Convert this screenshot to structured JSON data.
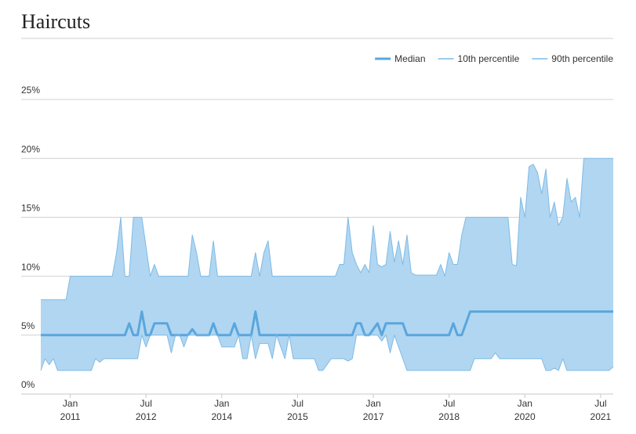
{
  "chart_data": {
    "type": "band-line",
    "title": "Haircuts",
    "legend": "top-right",
    "band_color": "#b1d6f1",
    "x": [
      "2010-06",
      "2010-07",
      "2010-08",
      "2010-09",
      "2010-10",
      "2010-11",
      "2010-12",
      "2011-01",
      "2011-02",
      "2011-03",
      "2011-04",
      "2011-05",
      "2011-06",
      "2011-07",
      "2011-08",
      "2011-09",
      "2011-10",
      "2011-11",
      "2011-12",
      "2012-01",
      "2012-02",
      "2012-03",
      "2012-04",
      "2012-05",
      "2012-06",
      "2012-07",
      "2012-08",
      "2012-09",
      "2012-10",
      "2012-11",
      "2012-12",
      "2013-01",
      "2013-02",
      "2013-03",
      "2013-04",
      "2013-05",
      "2013-06",
      "2013-07",
      "2013-08",
      "2013-09",
      "2013-10",
      "2013-11",
      "2013-12",
      "2014-01",
      "2014-02",
      "2014-03",
      "2014-04",
      "2014-05",
      "2014-06",
      "2014-07",
      "2014-08",
      "2014-09",
      "2014-10",
      "2014-11",
      "2014-12",
      "2015-01",
      "2015-02",
      "2015-03",
      "2015-04",
      "2015-05",
      "2015-06",
      "2015-07",
      "2015-08",
      "2015-09",
      "2015-10",
      "2015-11",
      "2015-12",
      "2016-01",
      "2016-02",
      "2016-03",
      "2016-04",
      "2016-05",
      "2016-06",
      "2016-07",
      "2016-08",
      "2016-09",
      "2016-10",
      "2016-11",
      "2016-12",
      "2017-01",
      "2017-02",
      "2017-03",
      "2017-04",
      "2017-05",
      "2017-06",
      "2017-07",
      "2017-08",
      "2017-09",
      "2017-10",
      "2017-11",
      "2017-12",
      "2018-01",
      "2018-02",
      "2018-03",
      "2018-04",
      "2018-05",
      "2018-06",
      "2018-07",
      "2018-08",
      "2018-09",
      "2018-10",
      "2018-11",
      "2018-12",
      "2019-01",
      "2019-02",
      "2019-03",
      "2019-04",
      "2019-05",
      "2019-06",
      "2019-07",
      "2019-08",
      "2019-09",
      "2019-10",
      "2019-11",
      "2019-12",
      "2020-01",
      "2020-02",
      "2020-03",
      "2020-04",
      "2020-05",
      "2020-06",
      "2020-07",
      "2020-08",
      "2020-09",
      "2020-10",
      "2020-11",
      "2020-12",
      "2021-01",
      "2021-02",
      "2021-03",
      "2021-04",
      "2021-05",
      "2021-06",
      "2021-07",
      "2021-08",
      "2021-09",
      "2021-10"
    ],
    "xlim": [
      "2010-06",
      "2021-10"
    ],
    "xticks": [
      {
        "value": "2011-01",
        "label": [
          "Jan",
          "2011"
        ]
      },
      {
        "value": "2012-07",
        "label": [
          "Jul",
          "2012"
        ]
      },
      {
        "value": "2014-01",
        "label": [
          "Jan",
          "2014"
        ]
      },
      {
        "value": "2015-07",
        "label": [
          "Jul",
          "2015"
        ]
      },
      {
        "value": "2017-01",
        "label": [
          "Jan",
          "2017"
        ]
      },
      {
        "value": "2018-07",
        "label": [
          "Jul",
          "2018"
        ]
      },
      {
        "value": "2020-01",
        "label": [
          "Jan",
          "2020"
        ]
      },
      {
        "value": "2021-07",
        "label": [
          "Jul",
          "2021"
        ]
      }
    ],
    "ylim": [
      0,
      25
    ],
    "yticks": [
      {
        "value": 0,
        "label": "0%"
      },
      {
        "value": 5,
        "label": "5%"
      },
      {
        "value": 10,
        "label": "10%"
      },
      {
        "value": 15,
        "label": "15%"
      },
      {
        "value": 20,
        "label": "20%"
      },
      {
        "value": 25,
        "label": "25%"
      }
    ],
    "grid": true,
    "series": [
      {
        "name": "Median",
        "color": "#5aa6dd",
        "values": [
          5,
          5,
          5,
          5,
          5,
          5,
          5,
          5,
          5,
          5,
          5,
          5,
          5,
          5,
          5,
          5,
          5,
          5,
          5,
          5,
          5,
          6,
          5,
          5,
          7,
          5,
          5,
          6,
          6,
          6,
          6,
          5,
          5,
          5,
          5,
          5,
          5.5,
          5,
          5,
          5,
          5,
          6,
          5,
          5,
          5,
          5,
          6,
          5,
          5,
          5,
          5,
          7,
          5,
          5,
          5,
          5,
          5,
          5,
          5,
          5,
          5,
          5,
          5,
          5,
          5,
          5,
          5,
          5,
          5,
          5,
          5,
          5,
          5,
          5,
          5,
          6,
          6,
          5,
          5,
          5.5,
          6,
          5,
          6,
          6,
          6,
          6,
          6,
          5,
          5,
          5,
          5,
          5,
          5,
          5,
          5,
          5,
          5,
          5,
          6,
          5,
          5,
          6,
          7,
          7,
          7,
          7,
          7,
          7,
          7,
          7,
          7,
          7,
          7,
          7,
          7,
          7,
          7,
          7,
          7,
          7,
          7,
          7,
          7,
          7,
          7,
          7,
          7,
          7,
          7,
          7,
          7,
          7,
          7,
          7,
          7,
          7,
          7
        ]
      },
      {
        "name": "10th percentile",
        "color": "#7dbbe6",
        "values": [
          2,
          3,
          2.5,
          3,
          2,
          2,
          2,
          2,
          2,
          2,
          2,
          2,
          2,
          3,
          2.7,
          3,
          3,
          3,
          3,
          3,
          3,
          3,
          3,
          3,
          5,
          4,
          5,
          5,
          5,
          5,
          5,
          3.5,
          5,
          5,
          4,
          5,
          5,
          5,
          5,
          5,
          5,
          5,
          5,
          4,
          4,
          4,
          4,
          5,
          3,
          3,
          5,
          3,
          4.3,
          4.3,
          4.3,
          3,
          5,
          4,
          3,
          5,
          3,
          3,
          3,
          3,
          3,
          3,
          2,
          2,
          2.5,
          3,
          3,
          3,
          3,
          2.8,
          3,
          5,
          5,
          5,
          5,
          5,
          5,
          4.5,
          5,
          3.5,
          5,
          4,
          3,
          2,
          2,
          2,
          2,
          2,
          2,
          2,
          2,
          2,
          2,
          2,
          2,
          2,
          2,
          2,
          2,
          3,
          3,
          3,
          3,
          3,
          3.5,
          3,
          3,
          3,
          3,
          3,
          3,
          3,
          3,
          3,
          3,
          3,
          2,
          2,
          2.2,
          2,
          3,
          2,
          2,
          2,
          2,
          2,
          2,
          2,
          2,
          2,
          2,
          2,
          2.3
        ]
      },
      {
        "name": "90th percentile",
        "color": "#7dbbe6",
        "values": [
          8,
          8,
          8,
          8,
          8,
          8,
          8,
          10,
          10,
          10,
          10,
          10,
          10,
          10,
          10,
          10,
          10,
          10,
          12,
          15,
          10,
          10,
          15,
          15,
          15,
          12.5,
          10,
          11,
          10,
          10,
          10,
          10,
          10,
          10,
          10,
          10,
          13.5,
          12,
          10,
          10,
          10,
          13,
          10,
          10,
          10,
          10,
          10,
          10,
          10,
          10,
          10,
          12,
          10,
          12,
          13,
          10,
          10,
          10,
          10,
          10,
          10,
          10,
          10,
          10,
          10,
          10,
          10,
          10,
          10,
          10,
          10,
          11,
          11,
          15,
          12,
          11,
          10.3,
          11,
          10.3,
          14.3,
          11,
          10.8,
          11,
          13.8,
          11.2,
          13,
          11,
          13.5,
          10.3,
          10.1,
          10.1,
          10.1,
          10.1,
          10.1,
          10.1,
          11,
          10,
          12,
          11,
          11,
          13.5,
          15,
          15,
          15,
          15,
          15,
          15,
          15,
          15,
          15,
          15,
          15,
          11,
          10.9,
          16.7,
          15,
          19.3,
          19.5,
          18.8,
          17,
          19.1,
          15,
          16.3,
          14.3,
          15,
          18.3,
          16.3,
          16.7,
          15,
          20,
          20,
          20,
          20,
          20,
          20,
          20,
          20
        ]
      }
    ]
  }
}
